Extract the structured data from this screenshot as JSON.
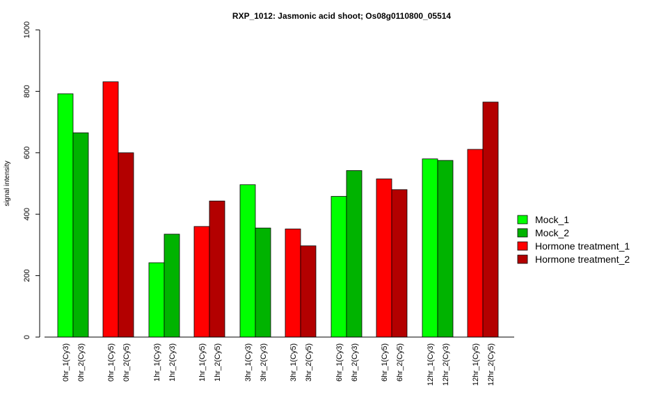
{
  "chart_data": {
    "type": "bar",
    "title": "RXP_1012: Jasmonic acid shoot; Os08g0110800_05514",
    "ylabel": "signal intensity",
    "xlabel": "",
    "ylim": [
      0,
      1000
    ],
    "yticks": [
      0,
      200,
      400,
      600,
      800,
      1000
    ],
    "grid": false,
    "legend_position": "right",
    "legend": [
      {
        "name": "Mock_1",
        "color": "#00ff00"
      },
      {
        "name": "Mock_2",
        "color": "#00b300"
      },
      {
        "name": "Hormone treatment_1",
        "color": "#ff0000"
      },
      {
        "name": "Hormone treatment_2",
        "color": "#b30000"
      }
    ],
    "bars": [
      {
        "label": "0hr_1(Cy3)",
        "value": 792,
        "group": 0
      },
      {
        "label": "0hr_2(Cy3)",
        "value": 665,
        "group": 1
      },
      {
        "label": "0hr_1(Cy5)",
        "value": 831,
        "group": 2
      },
      {
        "label": "0hr_2(Cy5)",
        "value": 600,
        "group": 3
      },
      {
        "label": "1hr_1(Cy3)",
        "value": 242,
        "group": 0
      },
      {
        "label": "1hr_2(Cy3)",
        "value": 335,
        "group": 1
      },
      {
        "label": "1hr_1(Cy5)",
        "value": 360,
        "group": 2
      },
      {
        "label": "1hr_2(Cy5)",
        "value": 443,
        "group": 3
      },
      {
        "label": "3hr_1(Cy3)",
        "value": 496,
        "group": 0
      },
      {
        "label": "3hr_2(Cy3)",
        "value": 355,
        "group": 1
      },
      {
        "label": "3hr_1(Cy5)",
        "value": 352,
        "group": 2
      },
      {
        "label": "3hr_2(Cy5)",
        "value": 297,
        "group": 3
      },
      {
        "label": "6hr_1(Cy3)",
        "value": 458,
        "group": 0
      },
      {
        "label": "6hr_2(Cy3)",
        "value": 542,
        "group": 1
      },
      {
        "label": "6hr_1(Cy5)",
        "value": 515,
        "group": 2
      },
      {
        "label": "6hr_2(Cy5)",
        "value": 480,
        "group": 3
      },
      {
        "label": "12hr_1(Cy3)",
        "value": 580,
        "group": 0
      },
      {
        "label": "12hr_2(Cy3)",
        "value": 575,
        "group": 1
      },
      {
        "label": "12hr_1(Cy5)",
        "value": 611,
        "group": 2
      },
      {
        "label": "12hr_2(Cy5)",
        "value": 765,
        "group": 3
      }
    ]
  }
}
